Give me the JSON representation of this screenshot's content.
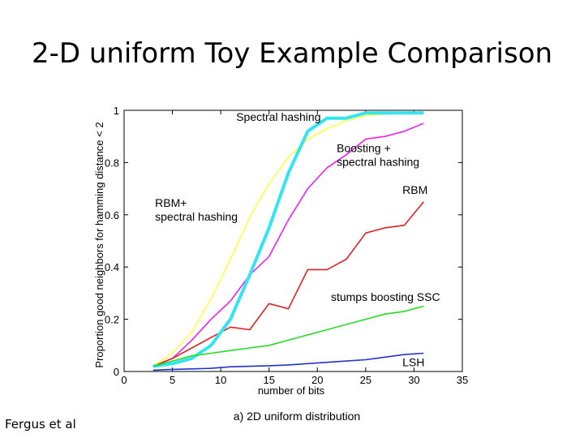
{
  "slide": {
    "title": "2-D uniform Toy Example Comparison",
    "credit": "Fergus et al"
  },
  "chart_data": {
    "type": "line",
    "xlabel": "number of bits",
    "ylabel": "Proportion good neighbors for hamming distance < 2",
    "caption": "a) 2D uniform distribution",
    "xlim": [
      0,
      35
    ],
    "ylim": [
      0,
      1
    ],
    "xticks": [
      "0",
      "5",
      "10",
      "15",
      "20",
      "25",
      "30",
      "35"
    ],
    "yticks": [
      "0",
      "0.2",
      "0.4",
      "0.6",
      "0.8",
      "1"
    ],
    "grid": false,
    "series": [
      {
        "name": "Spectral hashing",
        "color": "#ffff44",
        "x": [
          3,
          5,
          7,
          9,
          11,
          13,
          15,
          17,
          19,
          21,
          23,
          25,
          27,
          29,
          31
        ],
        "y": [
          0.02,
          0.07,
          0.15,
          0.28,
          0.43,
          0.59,
          0.72,
          0.82,
          0.89,
          0.93,
          0.96,
          0.98,
          0.985,
          0.99,
          0.99
        ]
      },
      {
        "name": "Boosting + spectral hashing",
        "color": "#ee22ee",
        "x": [
          3,
          5,
          7,
          9,
          11,
          13,
          15,
          17,
          19,
          21,
          23,
          25,
          27,
          29,
          31
        ],
        "y": [
          0.02,
          0.05,
          0.12,
          0.2,
          0.27,
          0.37,
          0.44,
          0.58,
          0.7,
          0.78,
          0.83,
          0.89,
          0.9,
          0.92,
          0.95
        ]
      },
      {
        "name": "RBM",
        "color": "#dd2222",
        "x": [
          3,
          5,
          7,
          9,
          11,
          13,
          15,
          17,
          19,
          21,
          23,
          25,
          27,
          29,
          31
        ],
        "y": [
          0.02,
          0.05,
          0.09,
          0.13,
          0.17,
          0.16,
          0.26,
          0.24,
          0.39,
          0.39,
          0.43,
          0.53,
          0.55,
          0.56,
          0.65
        ]
      },
      {
        "name": "RBM+ spectral hashing",
        "color": "#33e5f2",
        "x": [
          3,
          5,
          7,
          9,
          11,
          13,
          15,
          17,
          19,
          21,
          23,
          25,
          27,
          29,
          31
        ],
        "y": [
          0.02,
          0.03,
          0.05,
          0.1,
          0.2,
          0.37,
          0.55,
          0.76,
          0.92,
          0.97,
          0.97,
          0.99,
          0.99,
          0.99,
          0.99
        ]
      },
      {
        "name": "stumps boosting SSC",
        "color": "#22dd22",
        "x": [
          3,
          5,
          7,
          9,
          11,
          13,
          15,
          17,
          19,
          21,
          23,
          25,
          27,
          29,
          31
        ],
        "y": [
          0.02,
          0.04,
          0.06,
          0.07,
          0.08,
          0.09,
          0.1,
          0.12,
          0.14,
          0.16,
          0.18,
          0.2,
          0.22,
          0.23,
          0.25
        ]
      },
      {
        "name": "LSH",
        "color": "#2233cc",
        "x": [
          3,
          5,
          7,
          9,
          11,
          13,
          15,
          17,
          19,
          21,
          23,
          25,
          27,
          29,
          31
        ],
        "y": [
          0.005,
          0.008,
          0.01,
          0.012,
          0.018,
          0.02,
          0.022,
          0.025,
          0.03,
          0.035,
          0.04,
          0.045,
          0.055,
          0.065,
          0.07
        ]
      }
    ],
    "annotations": [
      {
        "lines": [
          "Spectral hashing"
        ],
        "x": 11.6,
        "y": 0.96
      },
      {
        "lines": [
          "Boosting +",
          "spectral hashing"
        ],
        "x": 22.0,
        "y": 0.84
      },
      {
        "lines": [
          "RBM"
        ],
        "x": 28.8,
        "y": 0.68
      },
      {
        "lines": [
          "RBM+",
          "spectral hashing"
        ],
        "x": 3.2,
        "y": 0.63
      },
      {
        "lines": [
          "stumps boosting SSC"
        ],
        "x": 21.4,
        "y": 0.27
      },
      {
        "lines": [
          "LSH"
        ],
        "x": 28.8,
        "y": 0.02
      }
    ]
  }
}
